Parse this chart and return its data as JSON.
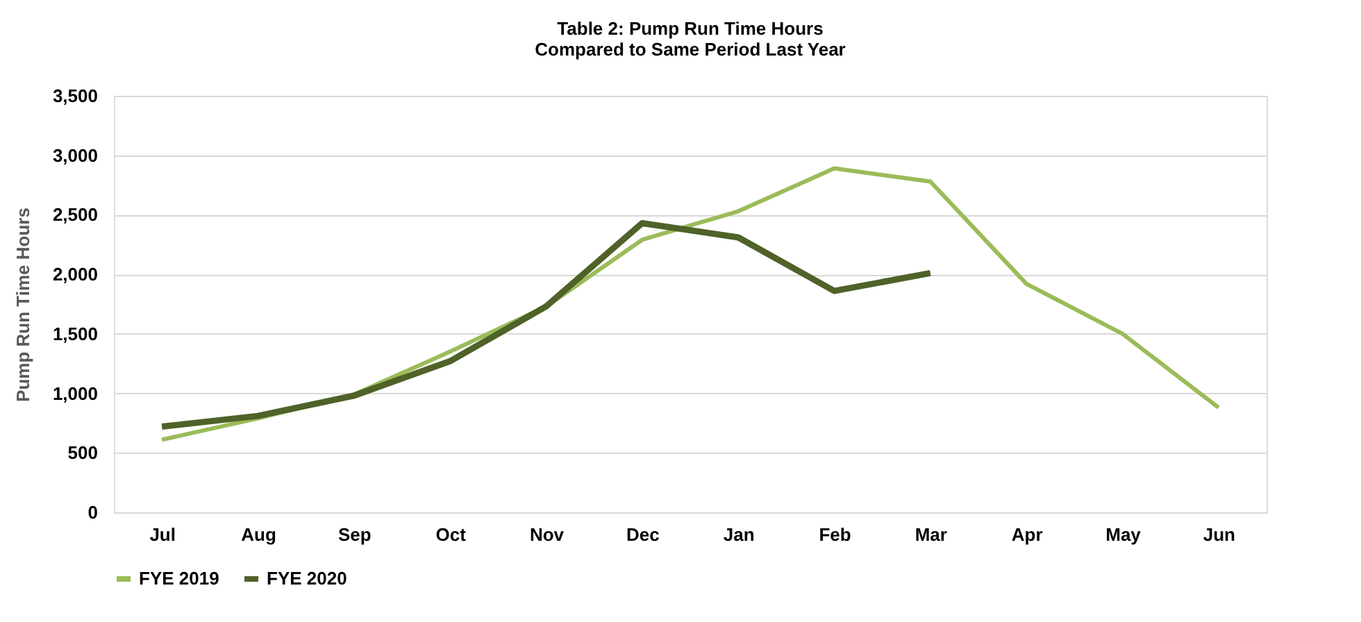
{
  "chart_data": {
    "type": "line",
    "title": "Table 2: Pump Run Time Hours\nCompared to Same Period Last Year",
    "ylabel": "Pump Run Time Hours",
    "categories": [
      "Jul",
      "Aug",
      "Sep",
      "Oct",
      "Nov",
      "Dec",
      "Jan",
      "Feb",
      "Mar",
      "Apr",
      "May",
      "Jun"
    ],
    "series": [
      {
        "name": "FYE 2019",
        "color": "#9bbb59",
        "values": [
          610,
          790,
          990,
          1350,
          1730,
          2290,
          2530,
          2890,
          2780,
          1920,
          1500,
          880
        ]
      },
      {
        "name": "FYE 2020",
        "color": "#4f6228",
        "values": [
          720,
          810,
          980,
          1270,
          1730,
          2430,
          2310,
          1860,
          2010,
          null,
          null,
          null
        ]
      }
    ],
    "ylim": [
      0,
      3500
    ],
    "yticks": [
      {
        "value": 0,
        "label": "0"
      },
      {
        "value": 500,
        "label": "500"
      },
      {
        "value": 1000,
        "label": "1,000"
      },
      {
        "value": 1500,
        "label": "1,500"
      },
      {
        "value": 2000,
        "label": "2,000"
      },
      {
        "value": 2500,
        "label": "2,500"
      },
      {
        "value": 3000,
        "label": "3,000"
      },
      {
        "value": 3500,
        "label": "3,500"
      }
    ],
    "grid": "y",
    "legend": "bottom",
    "marker": "none",
    "line_style": "solid"
  }
}
